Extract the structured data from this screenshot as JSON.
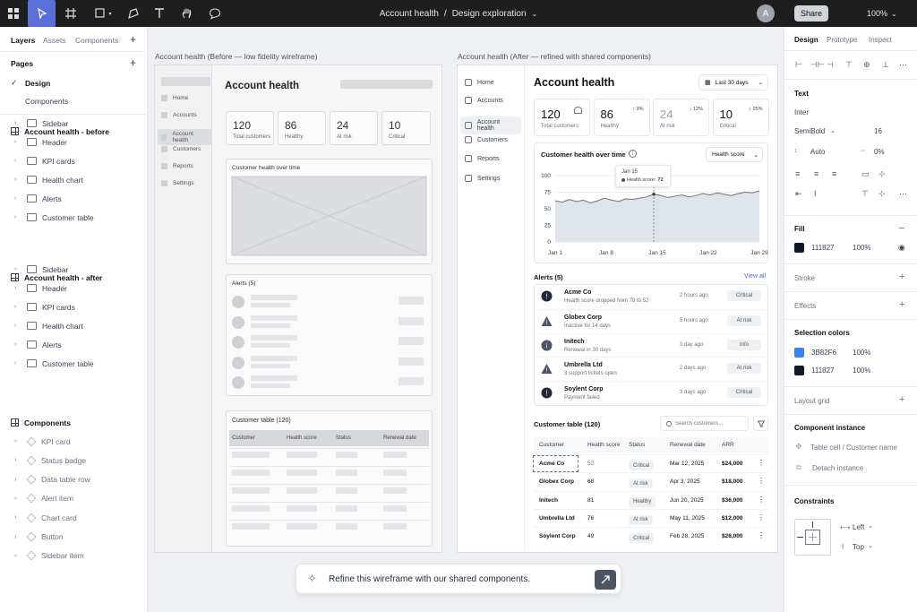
{
  "topbar": {
    "file_name": "Account health",
    "separator": "/",
    "page_name": "Design exploration",
    "avatar_initial": "A",
    "share_label": "Share",
    "zoom": "100%"
  },
  "left_panel": {
    "tabs": [
      "Layers",
      "Assets",
      "Components"
    ],
    "pages_heading": "Pages",
    "pages": [
      "Design",
      "Components"
    ],
    "groups": [
      {
        "name": "Account health - before",
        "layers": [
          "Sidebar",
          "Header",
          "KPI cards",
          "Health chart",
          "Alerts",
          "Customer table"
        ]
      },
      {
        "name": "Account health - after",
        "layers": [
          "Sidebar",
          "Header",
          "KPI cards",
          "Health chart",
          "Alerts",
          "Customer table"
        ]
      }
    ],
    "components_heading": "Components",
    "components": [
      "KPI card",
      "Status badge",
      "Data table row",
      "Alert item",
      "Chart card",
      "Button",
      "Sidebar item"
    ]
  },
  "wireframe": {
    "frame_label": "Account health (Before — low fidelity wireframe)",
    "title": "Account health",
    "nav": [
      "Home",
      "Accounts",
      "Account health",
      "Customers",
      "Reports",
      "Settings"
    ],
    "kpis": [
      {
        "value": "120",
        "label": "Total customers"
      },
      {
        "value": "86",
        "label": "Healthy"
      },
      {
        "value": "24",
        "label": "At risk"
      },
      {
        "value": "10",
        "label": "Critical"
      }
    ],
    "chart_title": "Customer health over time",
    "alerts_title": "Alerts (5)",
    "table_title": "Customer table (120)",
    "table_headers": [
      "Customer",
      "Health score",
      "Status",
      "Renewal date"
    ]
  },
  "refined": {
    "frame_label": "Account health (After — refined with shared components)",
    "title": "Account health",
    "date_range": "Last 30 days",
    "nav": [
      "Home",
      "Accounts",
      "Account health",
      "Customers",
      "Reports",
      "Settings"
    ],
    "kpis": [
      {
        "value": "120",
        "label": "Total customers",
        "delta": ""
      },
      {
        "value": "86",
        "label": "Healthy",
        "delta": "↑ 3%"
      },
      {
        "value": "24",
        "label": "At risk",
        "delta": "↓ 12%"
      },
      {
        "value": "10",
        "label": "Critical",
        "delta": "↑ 25%"
      }
    ],
    "chart_title": "Customer health over time",
    "chart_filter": "Health score",
    "tooltip_date": "Jan 15",
    "tooltip_label": "Health score:",
    "tooltip_value": "72",
    "alerts_title": "Alerts (5)",
    "view_all": "View all",
    "alerts": [
      {
        "name": "Acme Co",
        "desc": "Health score dropped from 78 to 52",
        "time": "2 hours ago",
        "badge": "Critical",
        "icon": "critical-icon"
      },
      {
        "name": "Globex Corp",
        "desc": "Inactive for 14 days",
        "time": "5 hours ago",
        "badge": "At risk",
        "icon": "warning-icon"
      },
      {
        "name": "Initech",
        "desc": "Renewal in 30 days",
        "time": "1 day ago",
        "badge": "Info",
        "icon": "info-icon"
      },
      {
        "name": "Umbrella Ltd",
        "desc": "3 support tickets open",
        "time": "2 days ago",
        "badge": "At risk",
        "icon": "warning-icon"
      },
      {
        "name": "Soylent Corp",
        "desc": "Payment failed",
        "time": "3 days ago",
        "badge": "Critical",
        "icon": "critical-icon"
      }
    ],
    "table_title": "Customer table (120)",
    "search_placeholder": "Search customers...",
    "table_headers": [
      "Customer",
      "Health score",
      "Status",
      "Renewal date",
      "ARR"
    ],
    "rows": [
      {
        "customer": "Acme Co",
        "score": "52",
        "status": "Critical",
        "renewal": "Mar 12, 2025",
        "arr": "$24,000"
      },
      {
        "customer": "Globex Corp",
        "score": "68",
        "status": "At risk",
        "renewal": "Apr 3, 2025",
        "arr": "$18,000"
      },
      {
        "customer": "Initech",
        "score": "81",
        "status": "Healthy",
        "renewal": "Jun 20, 2025",
        "arr": "$36,000"
      },
      {
        "customer": "Umbrella Ltd",
        "score": "76",
        "status": "At risk",
        "renewal": "May 11, 2025",
        "arr": "$12,000"
      },
      {
        "customer": "Soylent Corp",
        "score": "49",
        "status": "Critical",
        "renewal": "Feb 28, 2025",
        "arr": "$28,000"
      }
    ]
  },
  "chart_data": {
    "type": "area",
    "title": "Customer health over time",
    "x_ticks": [
      "Jan 1",
      "Jan 8",
      "Jan 15",
      "Jan 22",
      "Jan 29"
    ],
    "y_ticks": [
      0,
      25,
      50,
      75,
      100
    ],
    "ylim": [
      0,
      100
    ],
    "series": [
      {
        "name": "Health score",
        "values": [
          62,
          60,
          64,
          61,
          63,
          59,
          62,
          66,
          63,
          61,
          65,
          64,
          66,
          68,
          72,
          70,
          67,
          69,
          71,
          68,
          70,
          73,
          71,
          74,
          72,
          70,
          73,
          75,
          74,
          77
        ]
      }
    ],
    "grid": true
  },
  "chat": {
    "prompt": "Refine this wireframe with our shared components."
  },
  "right_panel": {
    "tabs": [
      "Design",
      "Prototype",
      "Inspect"
    ],
    "text_heading": "Text",
    "font_family": "Inter",
    "font_weight": "SemiBold",
    "font_size": "16",
    "line_height": "Auto",
    "letter_spacing": "0%",
    "fill_heading": "Fill",
    "fill_hex": "111827",
    "fill_opacity": "100%",
    "stroke_heading": "Stroke",
    "effects_heading": "Effects",
    "selection_colors_heading": "Selection colors",
    "selection_colors": [
      {
        "hex": "3B82F6",
        "opacity": "100%",
        "swatch": "#3b82f6"
      },
      {
        "hex": "111827",
        "opacity": "100%",
        "swatch": "#111827"
      }
    ],
    "layout_grid_heading": "Layout grid",
    "component_instance_heading": "Component instance",
    "instance_name": "Table cell / Customer name",
    "detach_label": "Detach instance",
    "constraints_heading": "Constraints",
    "constraint_h": "Left",
    "constraint_v": "Top"
  },
  "colors": {
    "accent": "#5b6fd8",
    "toolbar": "#1e1e1e"
  }
}
